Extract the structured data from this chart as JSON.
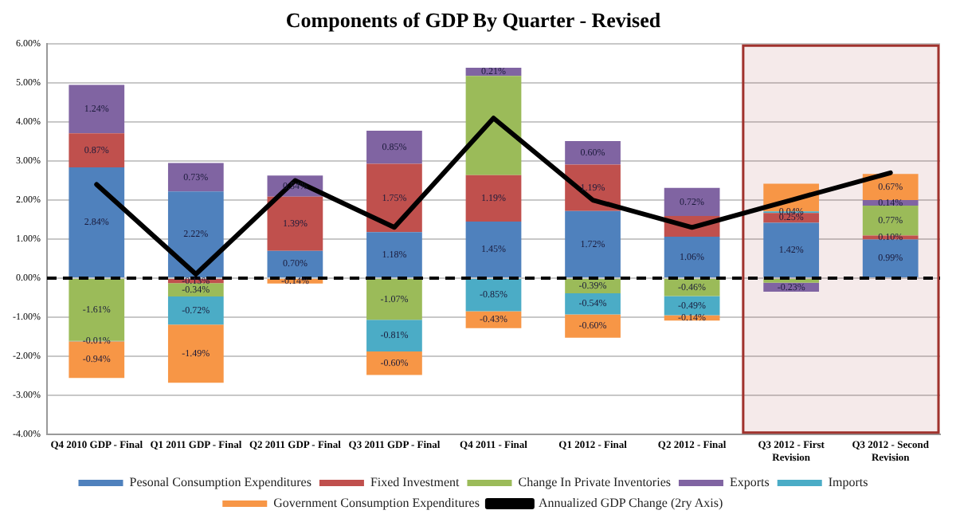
{
  "chart_data": {
    "type": "bar",
    "stacked": true,
    "title": "Components of GDP By Quarter - Revised",
    "categories": [
      "Q4 2010 GDP - Final",
      "Q1 2011 GDP - Final",
      "Q2 2011 GDP - Final",
      "Q3 2011 GDP - Final",
      "Q4 2011 - Final",
      "Q1 2012 - Final",
      "Q2 2012 - Final",
      "Q3 2012 - First Revision",
      "Q3 2012 - Second Revision"
    ],
    "series": [
      {
        "name": "Pesonal Consumption Expenditures",
        "color": "#4f81bd",
        "values": [
          2.84,
          2.22,
          0.7,
          1.18,
          1.45,
          1.72,
          1.06,
          1.42,
          0.99
        ],
        "value_labels": [
          "2.84%",
          "2.22%",
          "0.70%",
          "1.18%",
          "1.45%",
          "1.72%",
          "1.06%",
          "1.42%",
          "0.99%"
        ]
      },
      {
        "name": "Fixed Investment",
        "color": "#c0504d",
        "values": [
          0.87,
          -0.13,
          1.39,
          1.75,
          1.19,
          1.19,
          0.53,
          0.25,
          0.1
        ],
        "value_labels": [
          "0.87%",
          "-0.13%",
          "1.39%",
          "1.75%",
          "1.19%",
          "1.19%",
          null,
          "0.25%",
          "0.10%"
        ]
      },
      {
        "name": "Change In Private Inventories",
        "color": "#9bbb59",
        "values": [
          -1.61,
          -0.34,
          null,
          -1.07,
          2.54,
          -0.39,
          -0.46,
          -0.12,
          0.77
        ],
        "value_labels": [
          "-1.61%",
          "-0.34%",
          null,
          "-1.07%",
          null,
          "-0.39%",
          "-0.46%",
          null,
          "0.77%"
        ]
      },
      {
        "name": "Exports",
        "color": "#8064a2",
        "values": [
          1.24,
          0.73,
          0.54,
          0.85,
          0.21,
          0.6,
          0.72,
          -0.23,
          0.14
        ],
        "value_labels": [
          "1.24%",
          "0.73%",
          "0.54%",
          "0.85%",
          "0.21%",
          "0.60%",
          "0.72%",
          "-0.23%",
          "0.14%"
        ]
      },
      {
        "name": "Imports",
        "color": "#4bacc6",
        "values": [
          -0.01,
          -0.72,
          null,
          -0.81,
          -0.85,
          -0.54,
          -0.49,
          0.04,
          null
        ],
        "value_labels": [
          "-0.01%",
          "-0.72%",
          null,
          "-0.81%",
          "-0.85%",
          "-0.54%",
          "-0.49%",
          "0.04%",
          null
        ]
      },
      {
        "name": "Government Consumption Expenditures",
        "color": "#f79646",
        "values": [
          -0.94,
          -1.49,
          -0.14,
          -0.6,
          -0.43,
          -0.6,
          -0.14,
          0.71,
          0.67
        ],
        "value_labels": [
          "-0.94%",
          "-1.49%",
          "-0.14%",
          "-0.60%",
          "-0.43%",
          "-0.60%",
          "-0.14%",
          null,
          "0.67%"
        ]
      },
      {
        "name": "Annualized GDP Change (2ry Axis)",
        "type": "line",
        "color": "#000000",
        "values": [
          2.4,
          0.1,
          2.5,
          1.3,
          4.1,
          2.0,
          1.3,
          2.0,
          2.7
        ]
      }
    ],
    "ylim": [
      -4,
      6
    ],
    "yticks": [
      {
        "value": -4,
        "label": "-4.00%"
      },
      {
        "value": -3,
        "label": "-3.00%"
      },
      {
        "value": -2,
        "label": "-2.00%"
      },
      {
        "value": -1,
        "label": "-1.00%"
      },
      {
        "value": 0,
        "label": "0.00%"
      },
      {
        "value": 1,
        "label": "1.00%"
      },
      {
        "value": 2,
        "label": "2.00%"
      },
      {
        "value": 3,
        "label": "3.00%"
      },
      {
        "value": 4,
        "label": "4.00%"
      },
      {
        "value": 5,
        "label": "5.00%"
      },
      {
        "value": 6,
        "label": "6.00%"
      }
    ],
    "grid": "y",
    "legend": "bottom",
    "marker": "none",
    "ref_lines": [
      {
        "axis": "y",
        "value": 0,
        "color": "#000000",
        "line_style": "dashed"
      }
    ],
    "bands": [
      {
        "axis": "x",
        "from": "Q3 2012 - First Revision",
        "to": "Q3 2012 - Second Revision",
        "color": "#a0322d"
      }
    ]
  }
}
